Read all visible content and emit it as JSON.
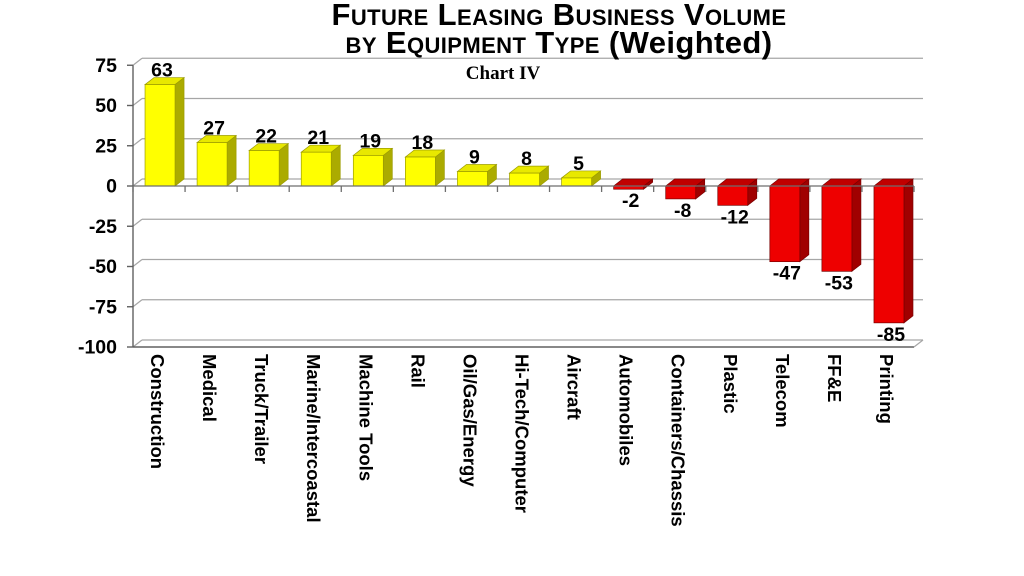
{
  "title": {
    "line1": "Future Leasing Business Volume",
    "line2_caps": "by Equipment Type ",
    "line2_normal": "(Weighted)",
    "subtitle": "Chart IV"
  },
  "chart_data": {
    "type": "bar",
    "style": "3d-column",
    "title": "Future Leasing Business Volume by Equipment Type (Weighted)",
    "subtitle": "Chart IV",
    "categories": [
      "Construction",
      "Medical",
      "Truck/Trailer",
      "Marine/Intercoastal",
      "Machine Tools",
      "Rail",
      "Oil/Gas/Energy",
      "Hi-Tech/Computer",
      "Aircraft",
      "Automobiles",
      "Containers/Chassis",
      "Plastic",
      "Telecom",
      "FF&E",
      "Printing"
    ],
    "values": [
      63,
      27,
      22,
      21,
      19,
      18,
      9,
      8,
      5,
      -2,
      -8,
      -12,
      -47,
      -53,
      -85
    ],
    "xlabel": "",
    "ylabel": "",
    "ylim": [
      -100,
      75
    ],
    "yticks": [
      75,
      50,
      25,
      0,
      -25,
      -50,
      -75,
      -100
    ],
    "grid": true,
    "legend": false,
    "value_labels": true,
    "colors": {
      "positive_front": "#FFFF00",
      "positive_top": "#E8E800",
      "positive_side": "#ABAB00",
      "positive_edge": "#9C9C00",
      "negative_front": "#EE0000",
      "negative_top": "#C00000",
      "negative_side": "#A00000",
      "negative_edge": "#7A0000",
      "gridline": "#A6A6A6",
      "axis": "#606060",
      "zero_axis": "#6E6E6E",
      "label": "#000000"
    }
  }
}
